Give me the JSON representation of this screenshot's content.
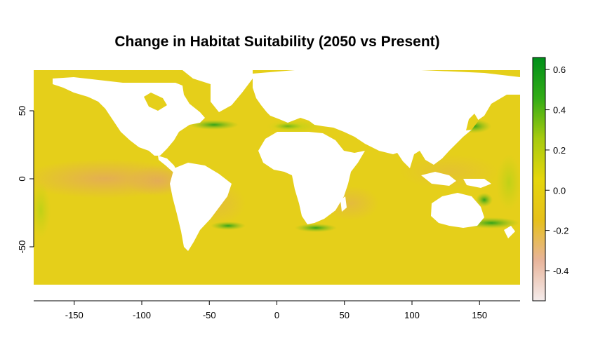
{
  "title": "Change in Habitat Suitability (2050 vs Present)",
  "map": {
    "x_axis": {
      "range": [
        -180,
        180
      ],
      "ticks": [
        -150,
        -100,
        -50,
        0,
        50,
        100,
        150
      ]
    },
    "y_axis": {
      "range": [
        -90,
        90
      ],
      "ticks": [
        -50,
        0,
        50
      ]
    },
    "colors": {
      "ocean_base": "#e5cf1a",
      "land": "#ffffff",
      "warm_patch": "#e6b84c",
      "cool_patch": "#d8d411",
      "green_patch": "#3aa51a"
    }
  },
  "legend": {
    "range": [
      -0.55,
      0.66
    ],
    "ticks": [
      "0.6",
      "0.4",
      "0.2",
      "0.0",
      "-0.2",
      "-0.4"
    ],
    "tick_values": [
      0.6,
      0.4,
      0.2,
      0.0,
      -0.2,
      -0.4
    ],
    "colors": [
      "#f5ecec",
      "#e8b49a",
      "#e6c01a",
      "#e5d60c",
      "#a7cb0e",
      "#32ac16",
      "#008f1a"
    ]
  }
}
